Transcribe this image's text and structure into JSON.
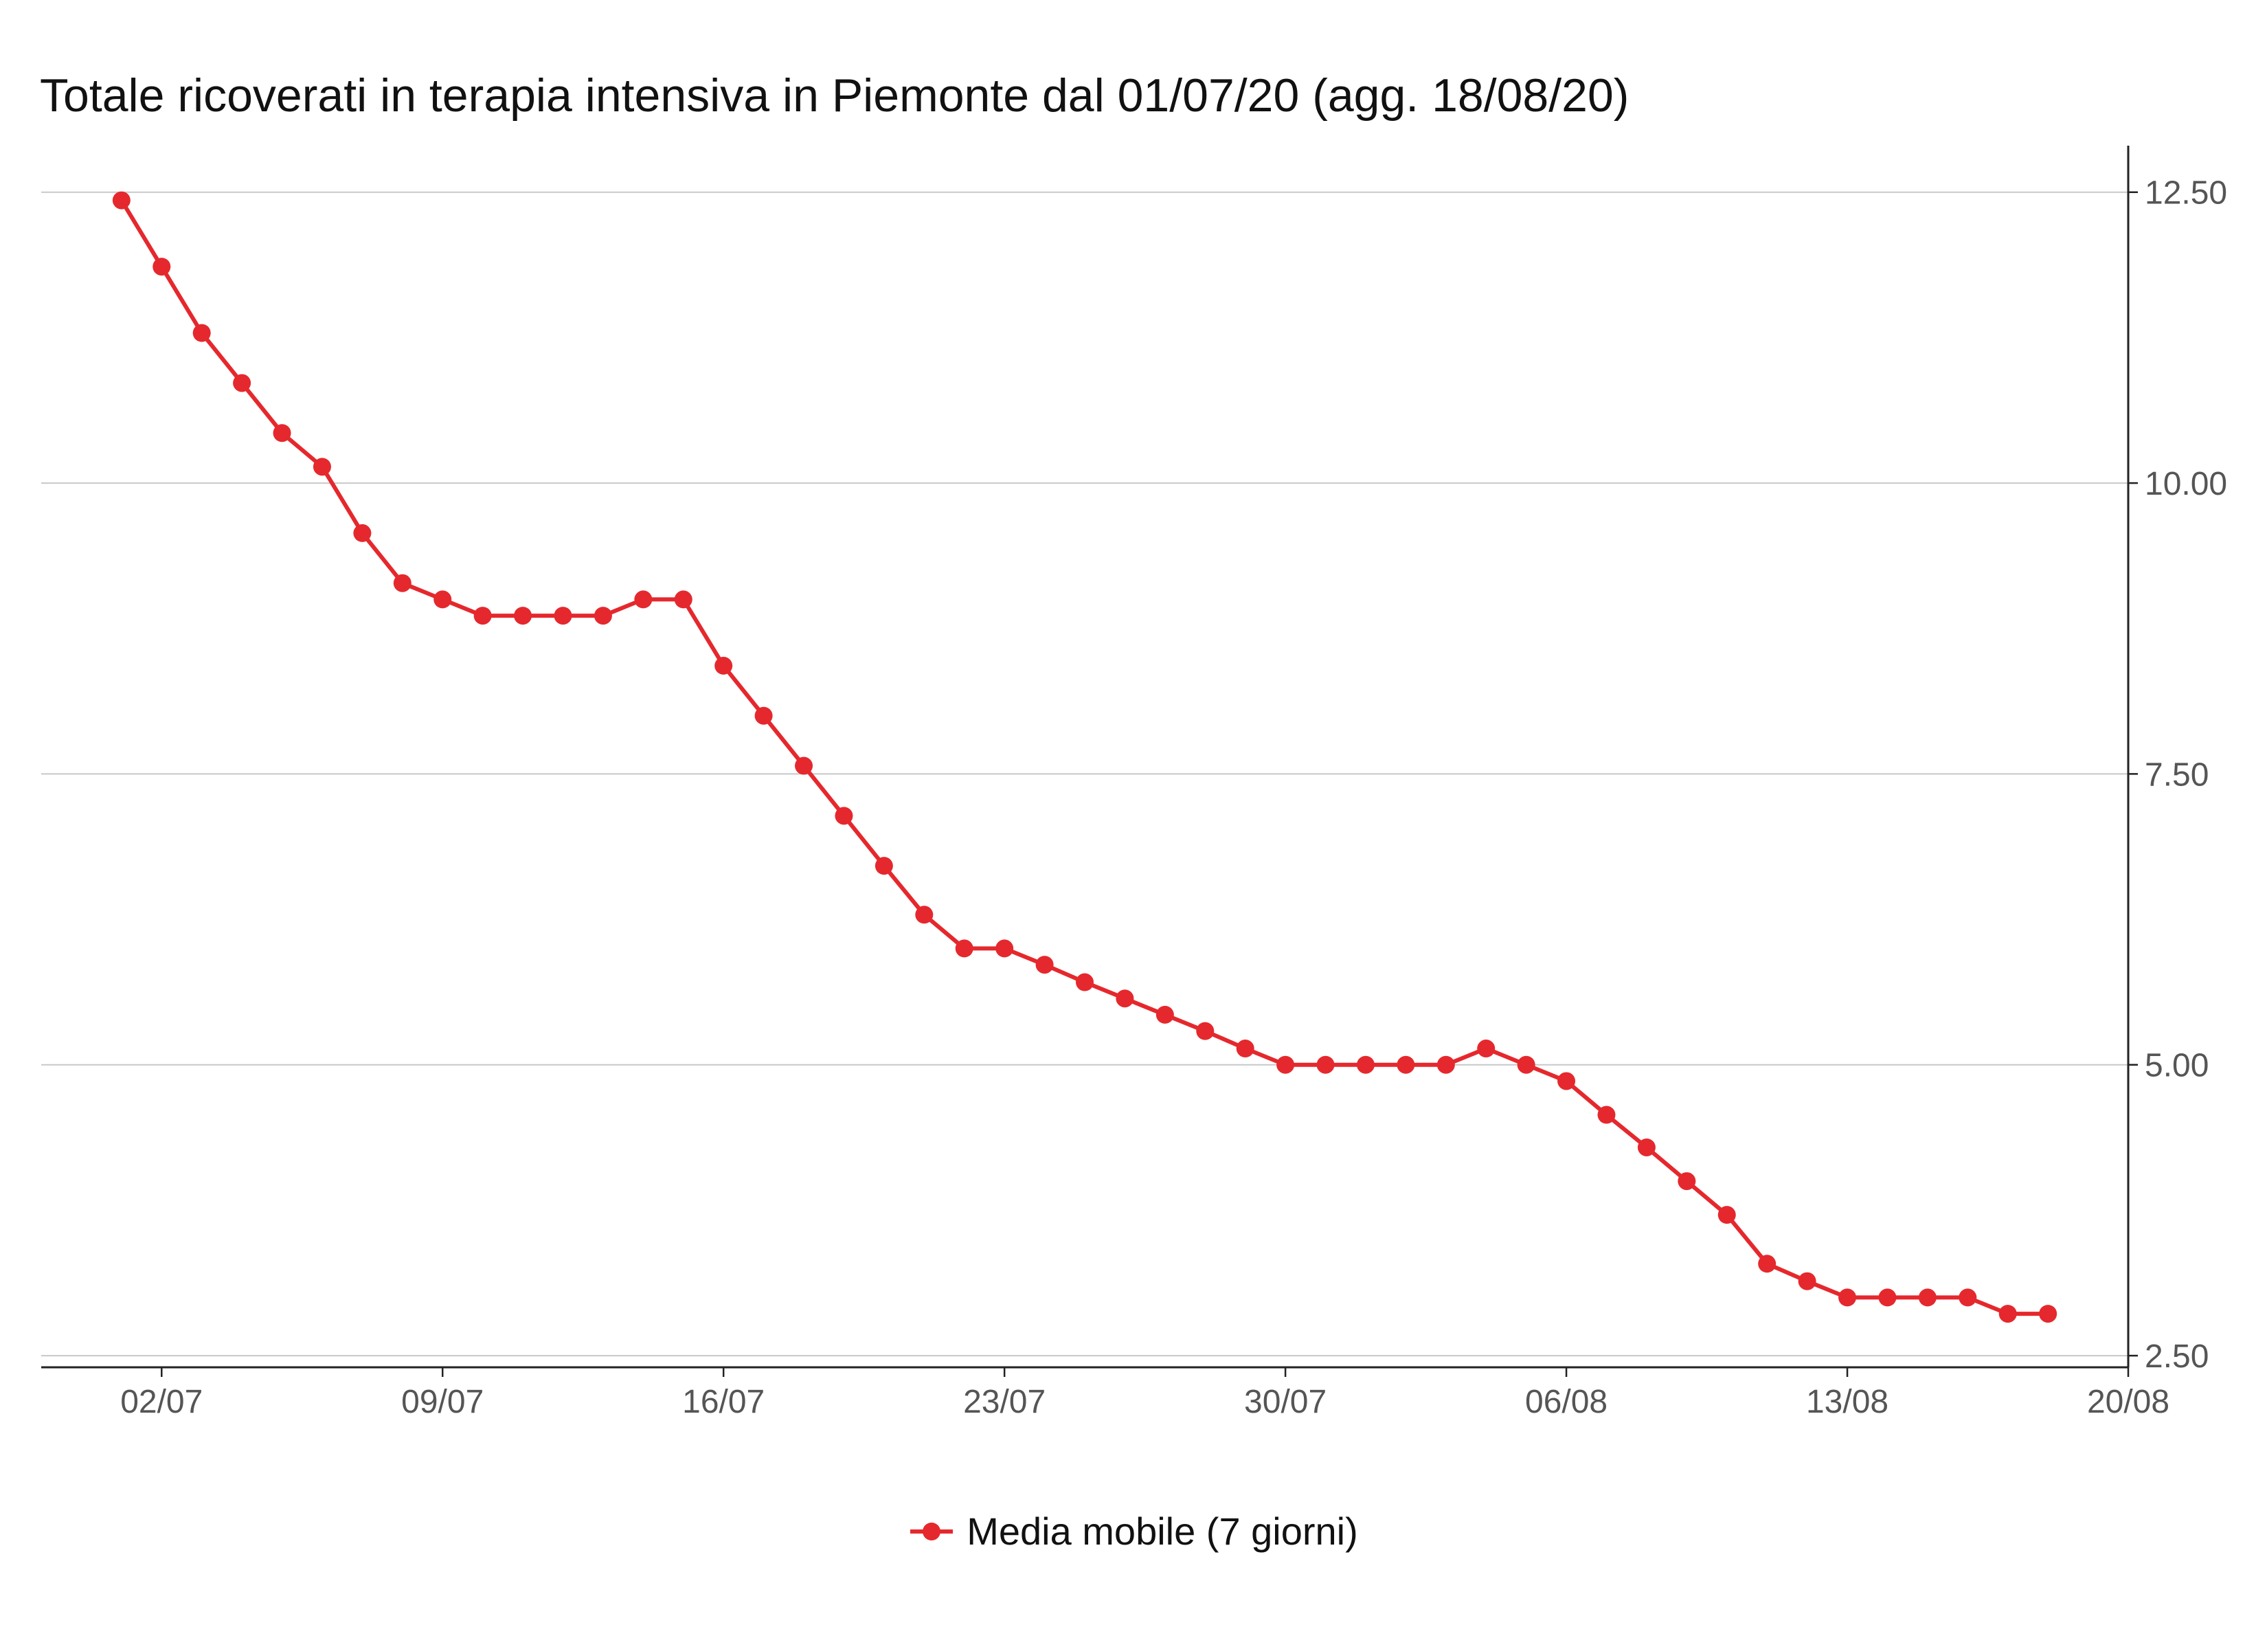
{
  "chart_data": {
    "type": "line",
    "title": "Totale ricoverati in terapia intensiva in Piemonte dal 01/07/20 (agg. 18/08/20)",
    "xlabel": "",
    "ylabel": "",
    "x_start": "2020-07-01",
    "xlim": [
      "2020-06-29",
      "2020-08-20"
    ],
    "ylim": [
      2.4,
      12.9
    ],
    "x_ticks": [
      "02/07",
      "09/07",
      "16/07",
      "23/07",
      "30/07",
      "06/08",
      "13/08",
      "20/08"
    ],
    "y_ticks": [
      "12.50",
      "10.00",
      "7.50",
      "5.00",
      "2.50"
    ],
    "y_axis_position": "right",
    "grid": "horizontal",
    "legend_position": "bottom",
    "color": "#e5282d",
    "series": [
      {
        "name": "Media mobile (7 giorni)",
        "x": [
          "2020-07-01",
          "2020-07-02",
          "2020-07-03",
          "2020-07-04",
          "2020-07-05",
          "2020-07-06",
          "2020-07-07",
          "2020-07-08",
          "2020-07-09",
          "2020-07-10",
          "2020-07-11",
          "2020-07-12",
          "2020-07-13",
          "2020-07-14",
          "2020-07-15",
          "2020-07-16",
          "2020-07-17",
          "2020-07-18",
          "2020-07-19",
          "2020-07-20",
          "2020-07-21",
          "2020-07-22",
          "2020-07-23",
          "2020-07-24",
          "2020-07-25",
          "2020-07-26",
          "2020-07-27",
          "2020-07-28",
          "2020-07-29",
          "2020-07-30",
          "2020-07-31",
          "2020-08-01",
          "2020-08-02",
          "2020-08-03",
          "2020-08-04",
          "2020-08-05",
          "2020-08-06",
          "2020-08-07",
          "2020-08-08",
          "2020-08-09",
          "2020-08-10",
          "2020-08-11",
          "2020-08-12",
          "2020-08-13",
          "2020-08-14",
          "2020-08-15",
          "2020-08-16",
          "2020-08-17",
          "2020-08-18"
        ],
        "values": [
          12.43,
          11.86,
          11.29,
          10.86,
          10.43,
          10.14,
          9.57,
          9.14,
          9.0,
          8.86,
          8.86,
          8.86,
          8.86,
          9.0,
          9.0,
          8.43,
          8.0,
          7.57,
          7.14,
          6.71,
          6.29,
          6.0,
          6.0,
          5.86,
          5.71,
          5.57,
          5.43,
          5.29,
          5.14,
          5.0,
          5.0,
          5.0,
          5.0,
          5.0,
          5.14,
          5.0,
          4.86,
          4.57,
          4.29,
          4.0,
          3.71,
          3.29,
          3.14,
          3.0,
          3.0,
          3.0,
          3.0,
          2.86,
          2.86
        ]
      }
    ]
  }
}
